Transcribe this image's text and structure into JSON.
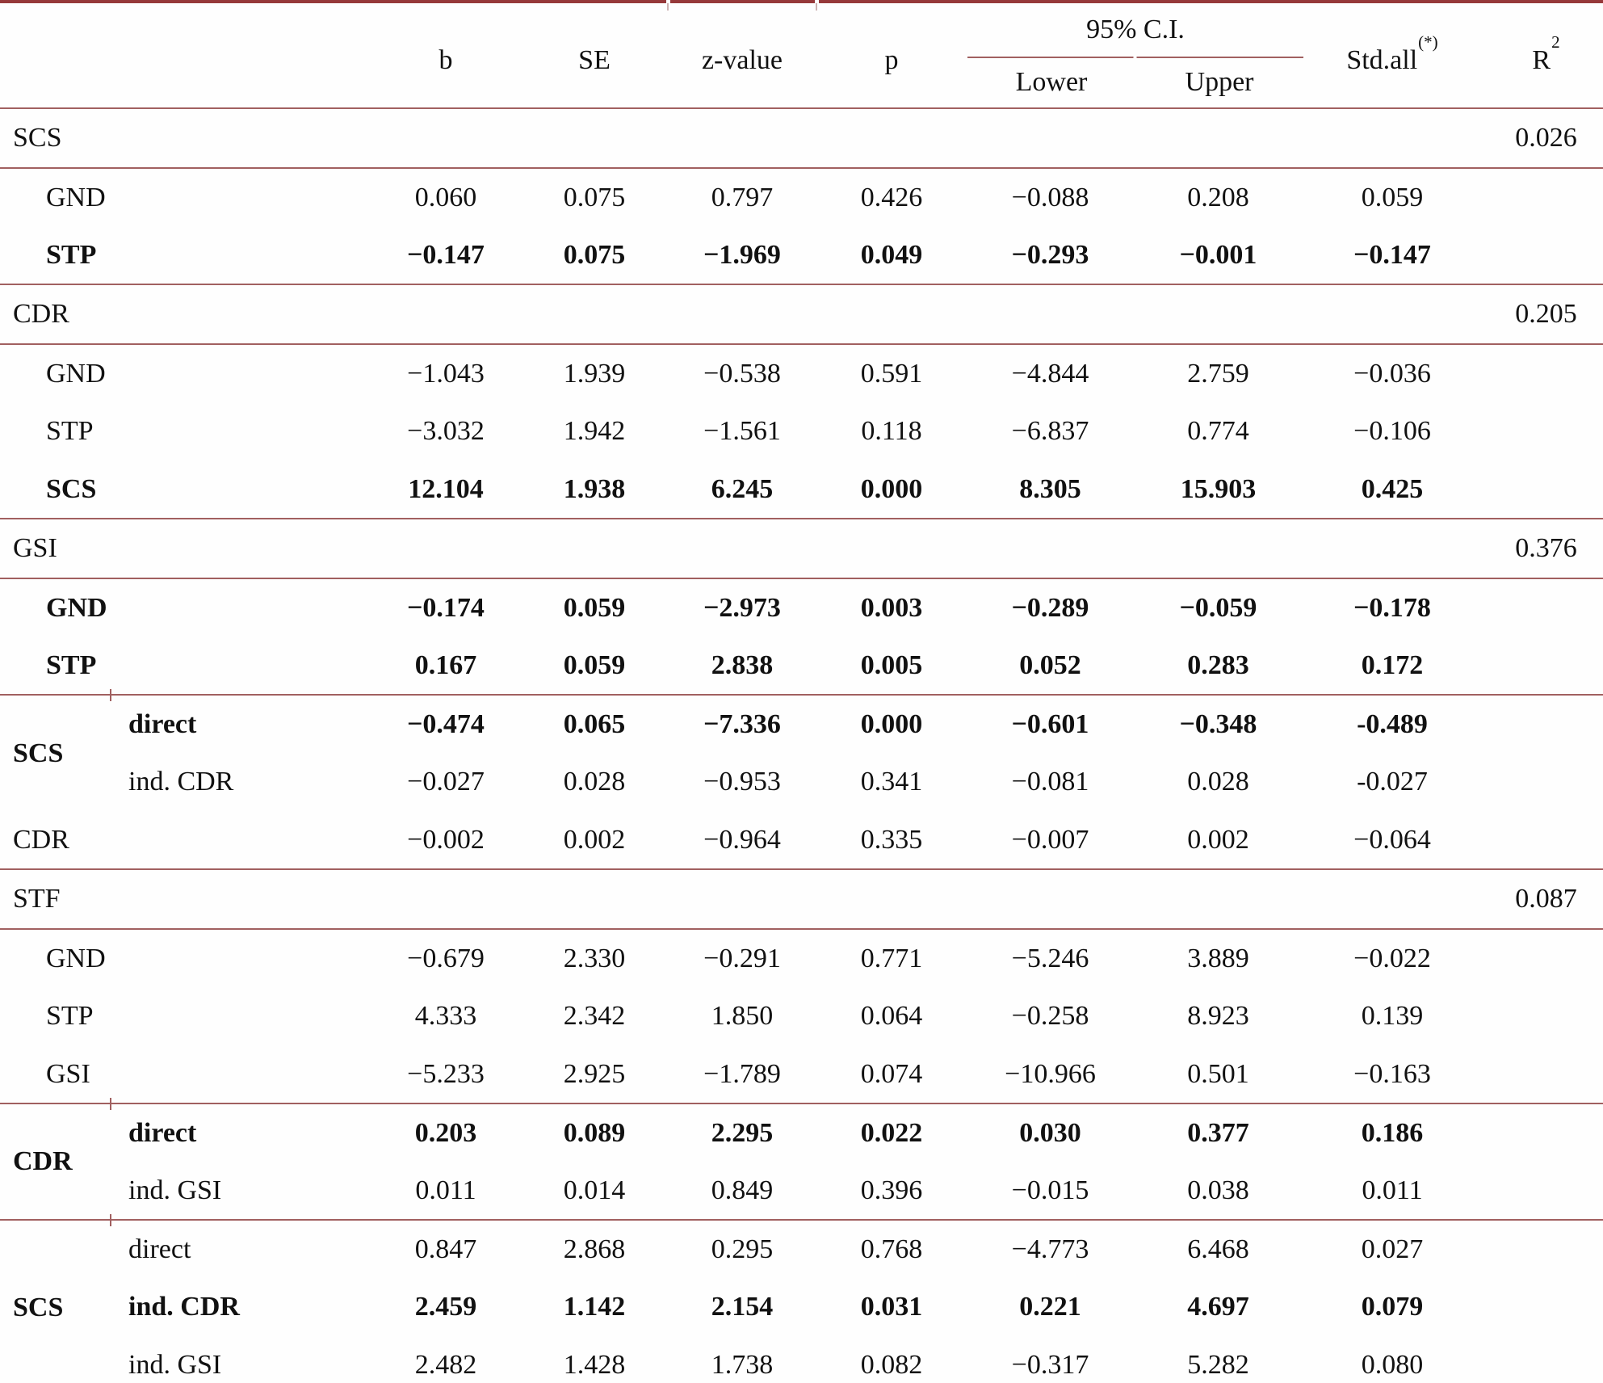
{
  "table": {
    "header": {
      "b": "b",
      "se": "SE",
      "z": "z-value",
      "p": "p",
      "ci": "95% C.I.",
      "lower": "Lower",
      "upper": "Upper",
      "stdall": "Std.all",
      "stdall_sup": "(*)",
      "r2": "R",
      "r2_sup": "2"
    },
    "colors": {
      "top_border": "#96393a",
      "rule_lines": "#a16060",
      "text": "#111111"
    },
    "rows": [
      {
        "kind": "section",
        "label": "SCS",
        "r2": "0.026"
      },
      {
        "kind": "data",
        "label": "GND",
        "indent": true,
        "bold": false,
        "vals": [
          "0.060",
          "0.075",
          "0.797",
          "0.426",
          "−0.088",
          "0.208",
          "0.059"
        ]
      },
      {
        "kind": "data",
        "label": "STP",
        "indent": true,
        "bold": true,
        "vals": [
          "−0.147",
          "0.075",
          "−1.969",
          "0.049",
          "−0.293",
          "−0.001",
          "−0.147"
        ]
      },
      {
        "kind": "section",
        "label": "CDR",
        "r2": "0.205"
      },
      {
        "kind": "data",
        "label": "GND",
        "indent": true,
        "bold": false,
        "vals": [
          "−1.043",
          "1.939",
          "−0.538",
          "0.591",
          "−4.844",
          "2.759",
          "−0.036"
        ]
      },
      {
        "kind": "data",
        "label": "STP",
        "indent": true,
        "bold": false,
        "vals": [
          "−3.032",
          "1.942",
          "−1.561",
          "0.118",
          "−6.837",
          "0.774",
          "−0.106"
        ]
      },
      {
        "kind": "data",
        "label": "SCS",
        "indent": true,
        "bold": true,
        "vals": [
          "12.104",
          "1.938",
          "6.245",
          "0.000",
          "8.305",
          "15.903",
          "0.425"
        ]
      },
      {
        "kind": "section",
        "label": "GSI",
        "r2": "0.376"
      },
      {
        "kind": "data",
        "label": "GND",
        "indent": true,
        "bold": true,
        "vals": [
          "−0.174",
          "0.059",
          "−2.973",
          "0.003",
          "−0.289",
          "−0.059",
          "−0.178"
        ]
      },
      {
        "kind": "data",
        "label": "STP",
        "indent": true,
        "bold": true,
        "vals": [
          "0.167",
          "0.059",
          "2.838",
          "0.005",
          "0.052",
          "0.283",
          "0.172"
        ]
      },
      {
        "kind": "data",
        "group": "SCS",
        "span": 2,
        "sub": "direct",
        "sep": true,
        "bold": true,
        "vals": [
          "−0.474",
          "0.065",
          "−7.336",
          "0.000",
          "−0.601",
          "−0.348",
          "-0.489"
        ]
      },
      {
        "kind": "data",
        "sub": "ind. CDR",
        "bold": false,
        "vals": [
          "−0.027",
          "0.028",
          "−0.953",
          "0.341",
          "−0.081",
          "0.028",
          "-0.027"
        ]
      },
      {
        "kind": "data",
        "label": "CDR",
        "indent": false,
        "bold": false,
        "vals": [
          "−0.002",
          "0.002",
          "−0.964",
          "0.335",
          "−0.007",
          "0.002",
          "−0.064"
        ]
      },
      {
        "kind": "section",
        "label": "STF",
        "r2": "0.087"
      },
      {
        "kind": "data",
        "label": "GND",
        "indent": true,
        "bold": false,
        "vals": [
          "−0.679",
          "2.330",
          "−0.291",
          "0.771",
          "−5.246",
          "3.889",
          "−0.022"
        ]
      },
      {
        "kind": "data",
        "label": "STP",
        "indent": true,
        "bold": false,
        "vals": [
          "4.333",
          "2.342",
          "1.850",
          "0.064",
          "−0.258",
          "8.923",
          "0.139"
        ]
      },
      {
        "kind": "data",
        "label": "GSI",
        "indent": true,
        "bold": false,
        "vals": [
          "−5.233",
          "2.925",
          "−1.789",
          "0.074",
          "−10.966",
          "0.501",
          "−0.163"
        ]
      },
      {
        "kind": "data",
        "group": "CDR",
        "span": 2,
        "sub": "direct",
        "sep": true,
        "bold": true,
        "vals": [
          "0.203",
          "0.089",
          "2.295",
          "0.022",
          "0.030",
          "0.377",
          "0.186"
        ]
      },
      {
        "kind": "data",
        "sub": "ind. GSI",
        "bold": false,
        "vals": [
          "0.011",
          "0.014",
          "0.849",
          "0.396",
          "−0.015",
          "0.038",
          "0.011"
        ]
      },
      {
        "kind": "data",
        "group": "SCS",
        "span": 3,
        "sub": "direct",
        "sep": true,
        "bold": false,
        "vals": [
          "0.847",
          "2.868",
          "0.295",
          "0.768",
          "−4.773",
          "6.468",
          "0.027"
        ]
      },
      {
        "kind": "data",
        "sub": "ind. CDR",
        "bold": true,
        "vals": [
          "2.459",
          "1.142",
          "2.154",
          "0.031",
          "0.221",
          "4.697",
          "0.079"
        ]
      },
      {
        "kind": "data",
        "sub": "ind. GSI",
        "bold": false,
        "vals": [
          "2.482",
          "1.428",
          "1.738",
          "0.082",
          "−0.317",
          "5.282",
          "0.080"
        ]
      }
    ]
  }
}
